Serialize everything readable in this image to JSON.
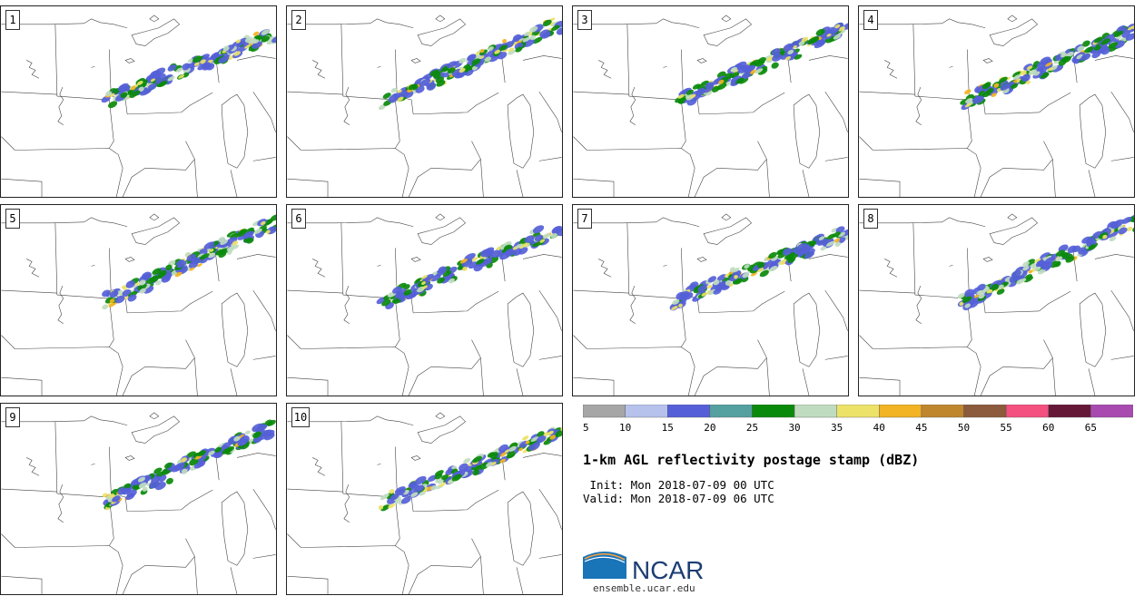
{
  "panels": [
    {
      "label": "1"
    },
    {
      "label": "2"
    },
    {
      "label": "3"
    },
    {
      "label": "4"
    },
    {
      "label": "5"
    },
    {
      "label": "6"
    },
    {
      "label": "7"
    },
    {
      "label": "8"
    },
    {
      "label": "9"
    },
    {
      "label": "10"
    }
  ],
  "colorbar": {
    "colors": [
      "#a6a6a6",
      "#b6c2ec",
      "#5560d8",
      "#55a0a0",
      "#0a8a0a",
      "#c0dcc0",
      "#ece268",
      "#f2b324",
      "#bf862e",
      "#8c5a3c",
      "#f45080",
      "#661838",
      "#a84ab0"
    ],
    "ticks": [
      "5",
      "10",
      "15",
      "20",
      "25",
      "30",
      "35",
      "40",
      "45",
      "50",
      "55",
      "60",
      "65"
    ]
  },
  "title": "1-km AGL reflectivity postage stamp (dBZ)",
  "init_line": " Init: Mon 2018-07-09 00 UTC",
  "valid_line": "Valid: Mon 2018-07-09 06 UTC",
  "logo_text": "NCAR",
  "url": "ensemble.ucar.edu"
}
